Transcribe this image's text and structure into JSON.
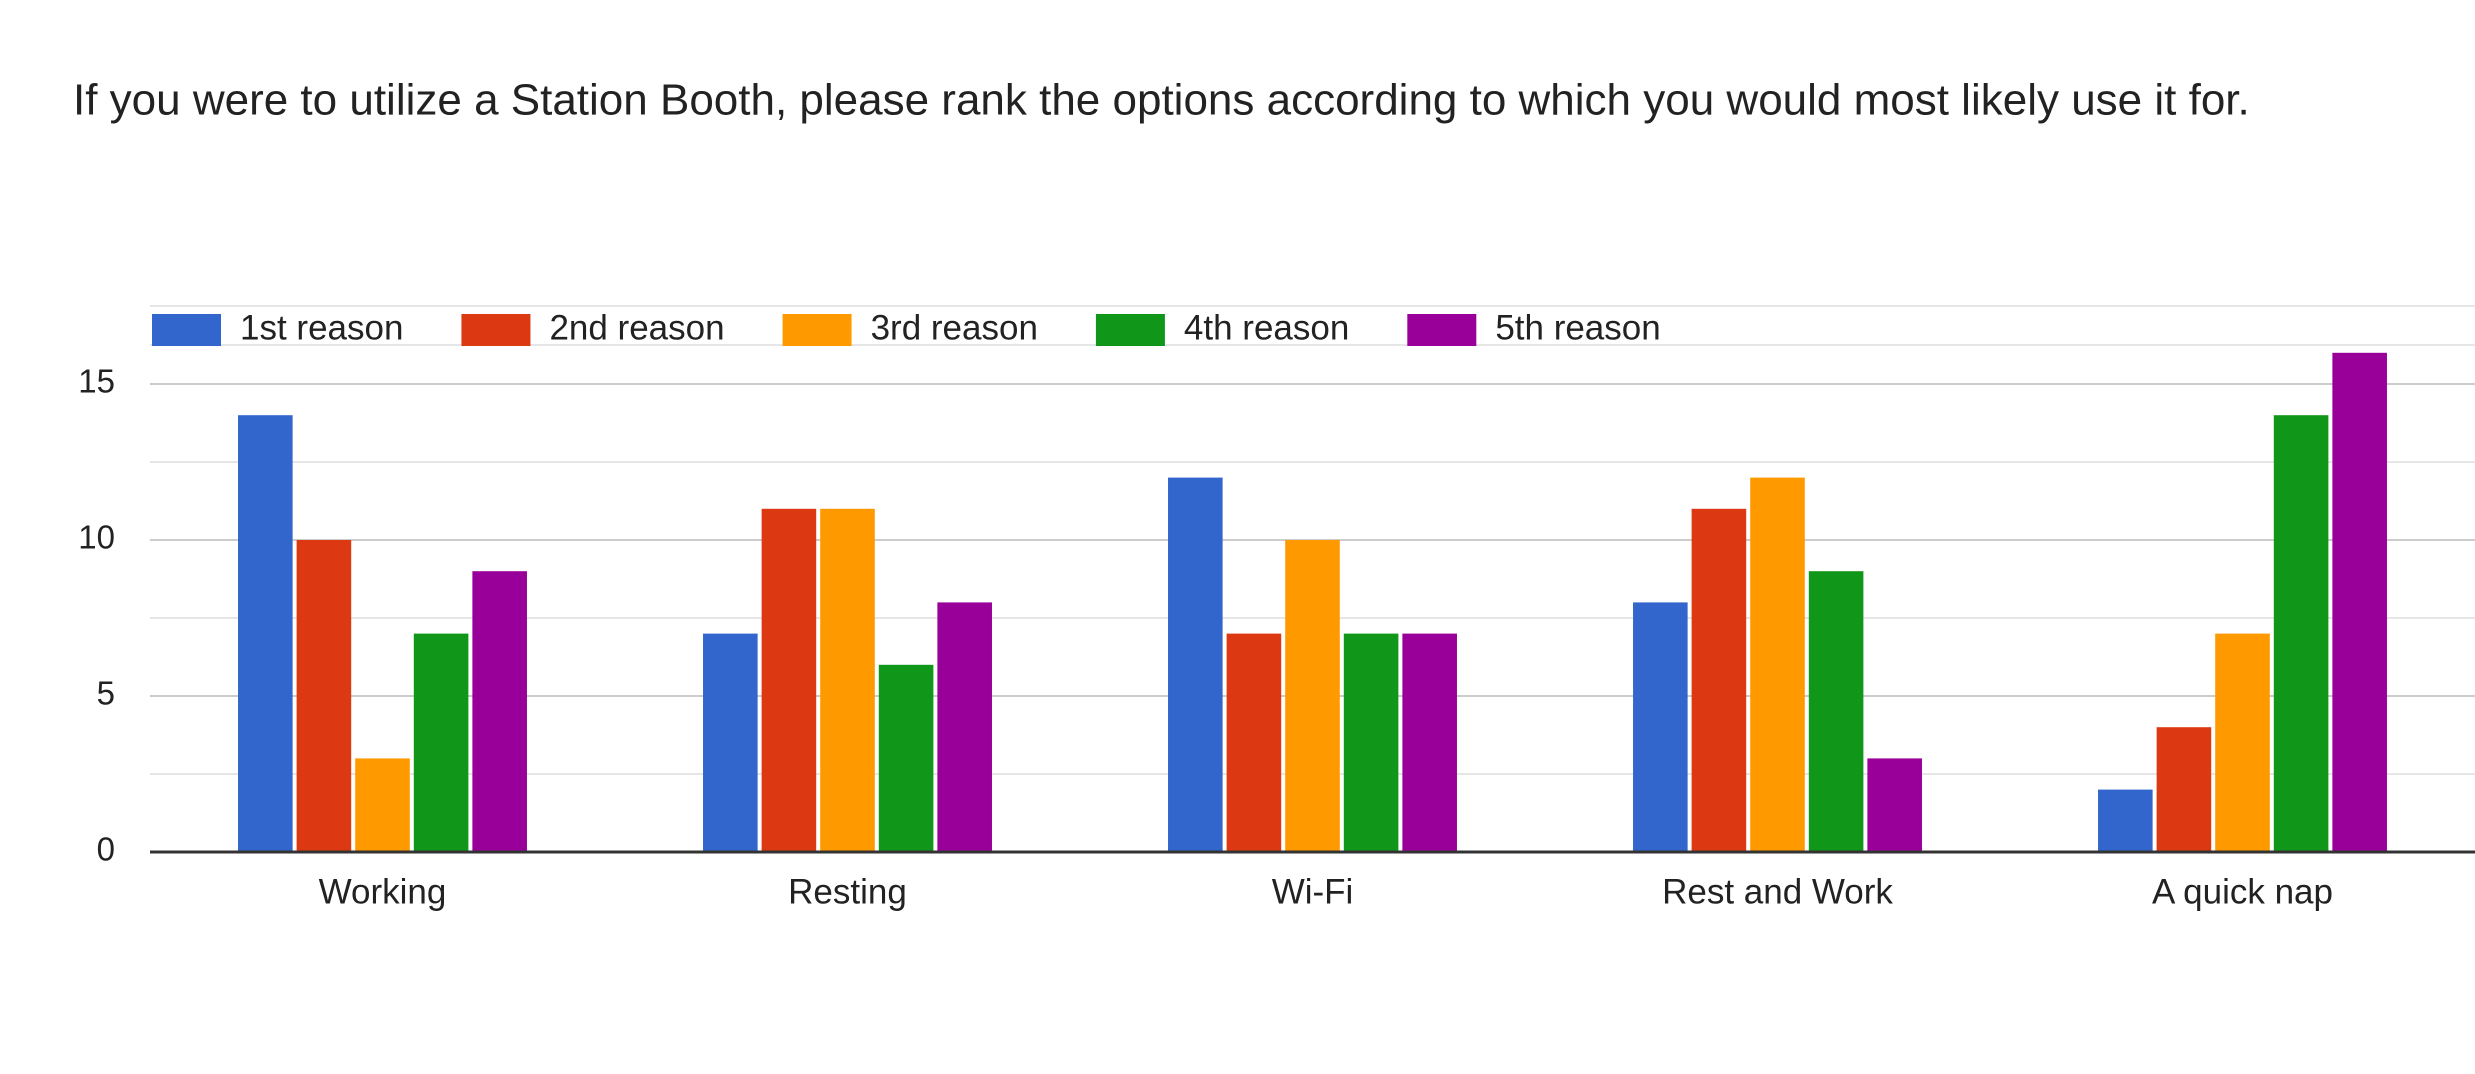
{
  "chart_data": {
    "type": "bar",
    "title": "If you were to utilize a Station Booth, please rank the options according to which you would most likely use it for.",
    "categories": [
      "Working",
      "Resting",
      "Wi-Fi",
      "Rest and Work",
      "A quick nap"
    ],
    "series": [
      {
        "name": "1st reason",
        "color": "#3366cc",
        "values": [
          14,
          7,
          12,
          8,
          2
        ]
      },
      {
        "name": "2nd reason",
        "color": "#dc3912",
        "values": [
          10,
          11,
          7,
          11,
          4
        ]
      },
      {
        "name": "3rd reason",
        "color": "#ff9900",
        "values": [
          3,
          11,
          10,
          12,
          7
        ]
      },
      {
        "name": "4th reason",
        "color": "#109618",
        "values": [
          7,
          6,
          7,
          9,
          14
        ]
      },
      {
        "name": "5th reason",
        "color": "#990099",
        "values": [
          9,
          8,
          7,
          3,
          16
        ]
      }
    ],
    "ylim": [
      0,
      17.5
    ],
    "yticks": [
      0,
      5,
      10,
      15
    ],
    "grid": true,
    "legend": "top"
  }
}
